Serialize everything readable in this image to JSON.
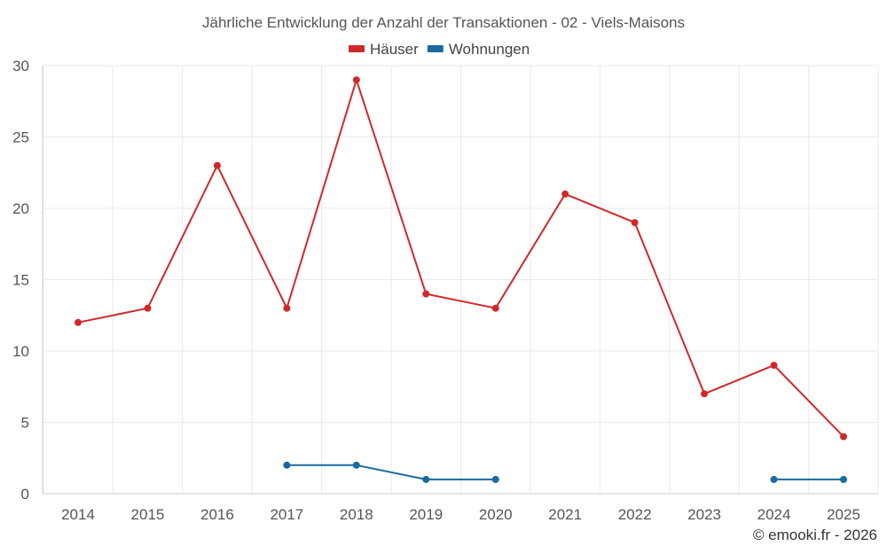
{
  "chart_data": {
    "type": "line",
    "title": "Jährliche Entwicklung der Anzahl der Transaktionen - 02 - Viels-Maisons",
    "categories": [
      "2014",
      "2015",
      "2016",
      "2017",
      "2018",
      "2019",
      "2020",
      "2021",
      "2022",
      "2023",
      "2024",
      "2025"
    ],
    "ylim": [
      0,
      30
    ],
    "yticks": [
      0,
      5,
      10,
      15,
      20,
      25,
      30
    ],
    "grid": true,
    "legend_position": "top-center",
    "series": [
      {
        "name": "Häuser",
        "color": "#d0282a",
        "values": [
          12,
          13,
          23,
          13,
          29,
          14,
          13,
          21,
          19,
          7,
          9,
          4
        ]
      },
      {
        "name": "Wohnungen",
        "color": "#1a6aa0",
        "values": [
          null,
          null,
          null,
          2,
          2,
          1,
          1,
          null,
          null,
          null,
          1,
          1
        ]
      }
    ],
    "xlabel": "",
    "ylabel": ""
  },
  "credit": "© emooki.fr - 2026"
}
